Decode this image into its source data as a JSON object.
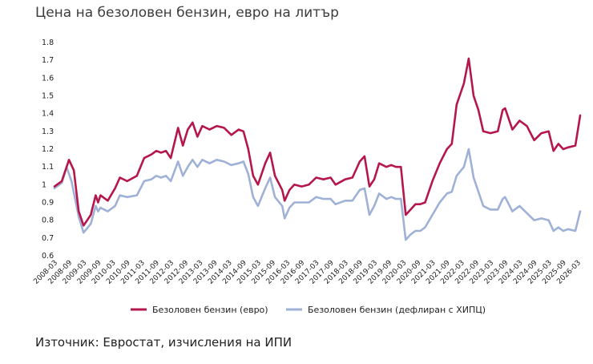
{
  "header": {
    "title": "Цена на безоловен бензин, евро на литър"
  },
  "footer": {
    "source": "Източник: Евростат, изчисления на ИПИ"
  },
  "chart_data": {
    "type": "line",
    "title": "Цена на безоловен бензин, евро на литър",
    "xlabel": "",
    "ylabel": "",
    "ylim": [
      0.6,
      1.8
    ],
    "yticks": [
      0.6,
      0.7,
      0.8,
      0.9,
      1,
      1.1,
      1.2,
      1.3,
      1.4,
      1.5,
      1.6,
      1.7,
      1.8
    ],
    "x_tick_labels": [
      "2008-03",
      "2008-09",
      "2009-03",
      "2009-09",
      "2010-03",
      "2010-09",
      "2011-03",
      "2011-09",
      "2012-03",
      "2012-09",
      "2013-03",
      "2013-09",
      "2014-03",
      "2014-09",
      "2015-03",
      "2015-09",
      "2016-03",
      "2016-09",
      "2017-03",
      "2017-09",
      "2018-03",
      "2018-09",
      "2019-03",
      "2019-09",
      "2020-03",
      "2020-09",
      "2021-03",
      "2021-09",
      "2022-03",
      "2022-09",
      "2023-03",
      "2023-09",
      "2024-03",
      "2024-09",
      "2025-03",
      "2025-09",
      "2026-03"
    ],
    "grid": false,
    "legend_position": "bottom",
    "series": [
      {
        "name": "Безоловен бензин (евро)",
        "color": "#b5174b",
        "points": [
          [
            "2008-03",
            0.99
          ],
          [
            "2008-06",
            1.02
          ],
          [
            "2008-09",
            1.14
          ],
          [
            "2008-11",
            1.08
          ],
          [
            "2009-01",
            0.85
          ],
          [
            "2009-03",
            0.77
          ],
          [
            "2009-06",
            0.83
          ],
          [
            "2009-08",
            0.94
          ],
          [
            "2009-09",
            0.9
          ],
          [
            "2009-10",
            0.94
          ],
          [
            "2010-01",
            0.91
          ],
          [
            "2010-04",
            0.98
          ],
          [
            "2010-06",
            1.04
          ],
          [
            "2010-09",
            1.02
          ],
          [
            "2011-01",
            1.05
          ],
          [
            "2011-04",
            1.15
          ],
          [
            "2011-07",
            1.17
          ],
          [
            "2011-09",
            1.19
          ],
          [
            "2011-11",
            1.18
          ],
          [
            "2012-01",
            1.19
          ],
          [
            "2012-03",
            1.15
          ],
          [
            "2012-06",
            1.32
          ],
          [
            "2012-08",
            1.22
          ],
          [
            "2012-10",
            1.31
          ],
          [
            "2012-12",
            1.35
          ],
          [
            "2013-02",
            1.27
          ],
          [
            "2013-04",
            1.33
          ],
          [
            "2013-07",
            1.31
          ],
          [
            "2013-10",
            1.33
          ],
          [
            "2014-01",
            1.32
          ],
          [
            "2014-04",
            1.28
          ],
          [
            "2014-07",
            1.31
          ],
          [
            "2014-09",
            1.3
          ],
          [
            "2014-11",
            1.2
          ],
          [
            "2015-01",
            1.05
          ],
          [
            "2015-03",
            1.0
          ],
          [
            "2015-06",
            1.12
          ],
          [
            "2015-08",
            1.18
          ],
          [
            "2015-10",
            1.05
          ],
          [
            "2016-01",
            0.97
          ],
          [
            "2016-02",
            0.91
          ],
          [
            "2016-04",
            0.97
          ],
          [
            "2016-06",
            1.0
          ],
          [
            "2016-09",
            0.99
          ],
          [
            "2016-12",
            1.0
          ],
          [
            "2017-03",
            1.04
          ],
          [
            "2017-06",
            1.03
          ],
          [
            "2017-09",
            1.04
          ],
          [
            "2017-11",
            1.0
          ],
          [
            "2018-03",
            1.03
          ],
          [
            "2018-06",
            1.04
          ],
          [
            "2018-09",
            1.13
          ],
          [
            "2018-11",
            1.16
          ],
          [
            "2019-01",
            0.99
          ],
          [
            "2019-03",
            1.03
          ],
          [
            "2019-05",
            1.12
          ],
          [
            "2019-08",
            1.1
          ],
          [
            "2019-10",
            1.11
          ],
          [
            "2019-12",
            1.1
          ],
          [
            "2020-02",
            1.1
          ],
          [
            "2020-04",
            0.83
          ],
          [
            "2020-06",
            0.86
          ],
          [
            "2020-08",
            0.89
          ],
          [
            "2020-10",
            0.89
          ],
          [
            "2020-12",
            0.9
          ],
          [
            "2021-03",
            1.02
          ],
          [
            "2021-06",
            1.12
          ],
          [
            "2021-09",
            1.2
          ],
          [
            "2021-11",
            1.23
          ],
          [
            "2022-01",
            1.45
          ],
          [
            "2022-04",
            1.57
          ],
          [
            "2022-06",
            1.71
          ],
          [
            "2022-08",
            1.5
          ],
          [
            "2022-10",
            1.42
          ],
          [
            "2022-12",
            1.3
          ],
          [
            "2023-03",
            1.29
          ],
          [
            "2023-06",
            1.3
          ],
          [
            "2023-08",
            1.42
          ],
          [
            "2023-09",
            1.43
          ],
          [
            "2023-12",
            1.31
          ],
          [
            "2024-03",
            1.36
          ],
          [
            "2024-06",
            1.33
          ],
          [
            "2024-09",
            1.25
          ],
          [
            "2024-12",
            1.29
          ],
          [
            "2025-03",
            1.3
          ],
          [
            "2025-05",
            1.19
          ],
          [
            "2025-07",
            1.23
          ],
          [
            "2025-09",
            1.2
          ],
          [
            "2025-11",
            1.21
          ],
          [
            "2026-02",
            1.22
          ],
          [
            "2026-04",
            1.39
          ]
        ]
      },
      {
        "name": "Безоловен бензин (дефлиран с ХИПЦ)",
        "color": "#9fb1d6",
        "points": [
          [
            "2008-03",
            0.98
          ],
          [
            "2008-06",
            1.01
          ],
          [
            "2008-08",
            1.1
          ],
          [
            "2008-10",
            1.02
          ],
          [
            "2009-01",
            0.82
          ],
          [
            "2009-03",
            0.73
          ],
          [
            "2009-06",
            0.78
          ],
          [
            "2009-08",
            0.88
          ],
          [
            "2009-09",
            0.85
          ],
          [
            "2009-10",
            0.87
          ],
          [
            "2010-01",
            0.85
          ],
          [
            "2010-04",
            0.88
          ],
          [
            "2010-06",
            0.94
          ],
          [
            "2010-09",
            0.93
          ],
          [
            "2011-01",
            0.94
          ],
          [
            "2011-04",
            1.02
          ],
          [
            "2011-07",
            1.03
          ],
          [
            "2011-09",
            1.05
          ],
          [
            "2011-11",
            1.04
          ],
          [
            "2012-01",
            1.05
          ],
          [
            "2012-03",
            1.02
          ],
          [
            "2012-06",
            1.13
          ],
          [
            "2012-08",
            1.05
          ],
          [
            "2012-10",
            1.1
          ],
          [
            "2012-12",
            1.14
          ],
          [
            "2013-02",
            1.1
          ],
          [
            "2013-04",
            1.14
          ],
          [
            "2013-07",
            1.12
          ],
          [
            "2013-10",
            1.14
          ],
          [
            "2014-01",
            1.13
          ],
          [
            "2014-04",
            1.11
          ],
          [
            "2014-07",
            1.12
          ],
          [
            "2014-09",
            1.13
          ],
          [
            "2014-11",
            1.06
          ],
          [
            "2015-01",
            0.93
          ],
          [
            "2015-03",
            0.88
          ],
          [
            "2015-06",
            0.98
          ],
          [
            "2015-08",
            1.04
          ],
          [
            "2015-10",
            0.93
          ],
          [
            "2016-01",
            0.88
          ],
          [
            "2016-02",
            0.81
          ],
          [
            "2016-04",
            0.87
          ],
          [
            "2016-06",
            0.9
          ],
          [
            "2016-09",
            0.9
          ],
          [
            "2016-12",
            0.9
          ],
          [
            "2017-03",
            0.93
          ],
          [
            "2017-06",
            0.92
          ],
          [
            "2017-09",
            0.92
          ],
          [
            "2017-11",
            0.89
          ],
          [
            "2018-03",
            0.91
          ],
          [
            "2018-06",
            0.91
          ],
          [
            "2018-09",
            0.97
          ],
          [
            "2018-11",
            0.98
          ],
          [
            "2019-01",
            0.83
          ],
          [
            "2019-03",
            0.88
          ],
          [
            "2019-05",
            0.95
          ],
          [
            "2019-08",
            0.92
          ],
          [
            "2019-10",
            0.93
          ],
          [
            "2019-12",
            0.92
          ],
          [
            "2020-02",
            0.92
          ],
          [
            "2020-04",
            0.69
          ],
          [
            "2020-06",
            0.72
          ],
          [
            "2020-08",
            0.74
          ],
          [
            "2020-10",
            0.74
          ],
          [
            "2020-12",
            0.76
          ],
          [
            "2021-03",
            0.83
          ],
          [
            "2021-06",
            0.9
          ],
          [
            "2021-09",
            0.95
          ],
          [
            "2021-11",
            0.96
          ],
          [
            "2022-01",
            1.05
          ],
          [
            "2022-04",
            1.1
          ],
          [
            "2022-06",
            1.2
          ],
          [
            "2022-08",
            1.04
          ],
          [
            "2022-10",
            0.96
          ],
          [
            "2022-12",
            0.88
          ],
          [
            "2023-03",
            0.86
          ],
          [
            "2023-06",
            0.86
          ],
          [
            "2023-08",
            0.92
          ],
          [
            "2023-09",
            0.93
          ],
          [
            "2023-12",
            0.85
          ],
          [
            "2024-03",
            0.88
          ],
          [
            "2024-06",
            0.84
          ],
          [
            "2024-09",
            0.8
          ],
          [
            "2024-12",
            0.81
          ],
          [
            "2025-03",
            0.8
          ],
          [
            "2025-05",
            0.74
          ],
          [
            "2025-07",
            0.76
          ],
          [
            "2025-09",
            0.74
          ],
          [
            "2025-11",
            0.75
          ],
          [
            "2026-02",
            0.74
          ],
          [
            "2026-04",
            0.85
          ]
        ]
      }
    ]
  }
}
